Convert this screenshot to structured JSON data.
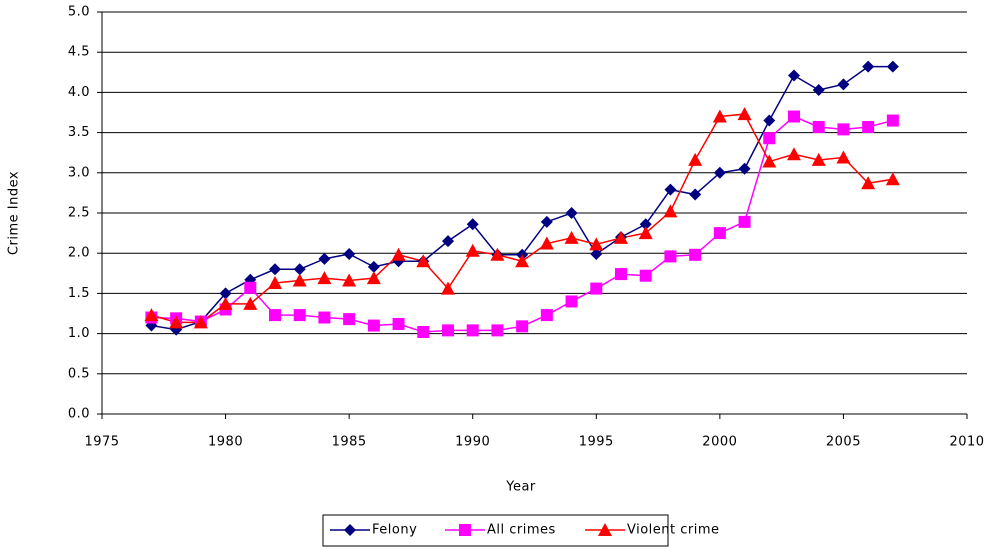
{
  "chart_data": {
    "type": "line",
    "x_label": "Year",
    "y_label": "Crime Index",
    "x": [
      1977,
      1978,
      1979,
      1980,
      1981,
      1982,
      1983,
      1984,
      1985,
      1986,
      1987,
      1988,
      1989,
      1990,
      1991,
      1992,
      1993,
      1994,
      1995,
      1996,
      1997,
      1998,
      1999,
      2000,
      2001,
      2002,
      2003,
      2004,
      2005,
      2006,
      2007
    ],
    "series": [
      {
        "name": "Felony",
        "color": "#000080",
        "marker": "diamond",
        "values": [
          1.1,
          1.05,
          1.15,
          1.5,
          1.67,
          1.8,
          1.8,
          1.93,
          1.99,
          1.83,
          1.9,
          1.9,
          2.15,
          2.36,
          1.98,
          1.98,
          2.39,
          2.5,
          1.99,
          2.2,
          2.36,
          2.79,
          2.73,
          3.0,
          3.05,
          3.65,
          4.21,
          4.03,
          4.1,
          4.32,
          4.32
        ]
      },
      {
        "name": "All crimes",
        "color": "#ff00ff",
        "marker": "square",
        "values": [
          1.2,
          1.19,
          1.15,
          1.3,
          1.57,
          1.23,
          1.23,
          1.2,
          1.18,
          1.1,
          1.12,
          1.02,
          1.04,
          1.04,
          1.04,
          1.09,
          1.23,
          1.4,
          1.56,
          1.74,
          1.72,
          1.96,
          1.98,
          2.25,
          2.39,
          3.43,
          3.7,
          3.57,
          3.54,
          3.57,
          3.65
        ]
      },
      {
        "name": "Violent crime",
        "color": "#ff0000",
        "marker": "triangle",
        "values": [
          1.23,
          1.14,
          1.14,
          1.37,
          1.37,
          1.63,
          1.66,
          1.69,
          1.66,
          1.69,
          1.98,
          1.9,
          1.56,
          2.03,
          1.98,
          1.9,
          2.12,
          2.19,
          2.11,
          2.19,
          2.25,
          2.52,
          3.16,
          3.7,
          3.73,
          3.14,
          3.23,
          3.16,
          3.19,
          2.87,
          2.92
        ]
      }
    ],
    "xlim": [
      1975,
      2010
    ],
    "xticks": [
      1975,
      1980,
      1985,
      1990,
      1995,
      2000,
      2005,
      2010
    ],
    "ylim": [
      0,
      5
    ],
    "yticks": [
      {
        "value": 0,
        "label": "0.0"
      },
      0.5,
      {
        "value": 1,
        "label": "1.0"
      },
      1.5,
      {
        "value": 2,
        "label": "2.0"
      },
      2.5,
      {
        "value": 3,
        "label": "3.0"
      },
      3.5,
      {
        "value": 4,
        "label": "4.0"
      },
      4.5,
      {
        "value": 5,
        "label": "5.0"
      }
    ],
    "grid": true,
    "legend": "bottom"
  }
}
